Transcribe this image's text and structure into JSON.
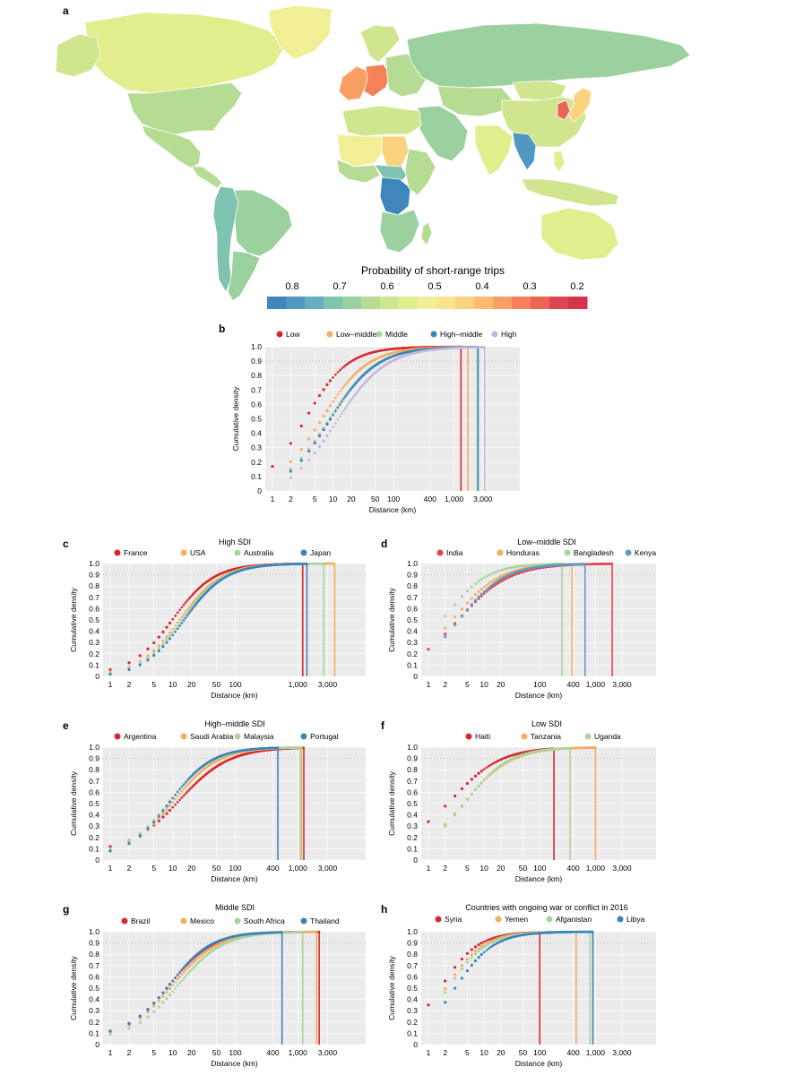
{
  "panel_labels": {
    "a": "a",
    "b": "b",
    "c": "c",
    "d": "d",
    "e": "e",
    "f": "f",
    "g": "g",
    "h": "h"
  },
  "map": {
    "colorbar_title": "Probability of short-range trips",
    "colorbar_ticks": [
      "0.8",
      "0.7",
      "0.6",
      "0.5",
      "0.4",
      "0.3",
      "0.2"
    ],
    "colorbar_tick_values": [
      0.8,
      0.7,
      0.6,
      0.5,
      0.4,
      0.3,
      0.2
    ],
    "colorbar_colors": [
      "#3f86bc",
      "#4f98c2",
      "#66adbf",
      "#80c2b0",
      "#9bd19e",
      "#b6dc93",
      "#cfe68e",
      "#e2ed8e",
      "#f0ef95",
      "#f8e48a",
      "#fbd27d",
      "#fcbb6f",
      "#fa9f63",
      "#f5815a",
      "#ec6454",
      "#e04651",
      "#d6344d"
    ],
    "regions": [
      {
        "name": "Canada",
        "value": 0.54
      },
      {
        "name": "Alaska",
        "value": 0.58
      },
      {
        "name": "Greenland",
        "value": 0.5
      },
      {
        "name": "USA",
        "value": 0.62
      },
      {
        "name": "Mexico",
        "value": 0.62
      },
      {
        "name": "Central America",
        "value": 0.6
      },
      {
        "name": "Brazil",
        "value": 0.66
      },
      {
        "name": "South America West",
        "value": 0.7
      },
      {
        "name": "Argentina",
        "value": 0.64
      },
      {
        "name": "Europe West",
        "value": 0.36
      },
      {
        "name": "Europe Central",
        "value": 0.3
      },
      {
        "name": "Scandinavia",
        "value": 0.58
      },
      {
        "name": "Eastern Europe",
        "value": 0.62
      },
      {
        "name": "Russia",
        "value": 0.64
      },
      {
        "name": "Central Asia",
        "value": 0.62
      },
      {
        "name": "Middle East",
        "value": 0.66
      },
      {
        "name": "India",
        "value": 0.54
      },
      {
        "name": "China",
        "value": 0.56
      },
      {
        "name": "Mongolia",
        "value": 0.57
      },
      {
        "name": "Japan",
        "value": 0.42
      },
      {
        "name": "Korea",
        "value": 0.28
      },
      {
        "name": "SE Asia",
        "value": 0.78
      },
      {
        "name": "Indonesia",
        "value": 0.56
      },
      {
        "name": "Philippines",
        "value": 0.52
      },
      {
        "name": "Australia",
        "value": 0.52
      },
      {
        "name": "North Africa",
        "value": 0.58
      },
      {
        "name": "Sahel",
        "value": 0.5
      },
      {
        "name": "Chad",
        "value": 0.42
      },
      {
        "name": "West Africa",
        "value": 0.6
      },
      {
        "name": "Central Africa",
        "value": 0.68
      },
      {
        "name": "DR Congo",
        "value": 0.82
      },
      {
        "name": "East Africa",
        "value": 0.62
      },
      {
        "name": "Southern Africa",
        "value": 0.66
      },
      {
        "name": "Madagascar",
        "value": 0.6
      }
    ]
  },
  "chart_data": [
    {
      "id": "b",
      "type": "scatter",
      "title": "",
      "xlabel": "Distance (km)",
      "ylabel": "Cumulative density",
      "xscale": "log",
      "xlim": [
        1,
        3000
      ],
      "ylim": [
        0,
        1
      ],
      "xticks": [
        1,
        2,
        5,
        10,
        20,
        50,
        100,
        400,
        1000,
        3000
      ],
      "xtick_labels": [
        "1",
        "2",
        "5",
        "10",
        "20",
        "50",
        "100",
        "400",
        "1,000",
        "3,000"
      ],
      "yticks": [
        0,
        0.1,
        0.2,
        0.3,
        0.4,
        0.5,
        0.6,
        0.7,
        0.8,
        0.9,
        1.0
      ],
      "ytick_labels": [
        "0",
        "0.1",
        "0.2",
        "0.3",
        "0.4",
        "0.5",
        "0.6",
        "0.7",
        "0.8",
        "0.9",
        "1.0"
      ],
      "legend_position": "top",
      "series": [
        {
          "name": "Low",
          "color": "#d7282f",
          "start": 0.17,
          "x50": 3.5,
          "k": 1.25,
          "max": 1300,
          "dmax": 1300
        },
        {
          "name": "Low–middle",
          "color": "#f6ad5f",
          "start": 0.1,
          "x50": 6.5,
          "k": 1.15,
          "max": 1700,
          "dmax": 1700
        },
        {
          "name": "Middle",
          "color": "#a8d5a0",
          "start": 0.07,
          "x50": 8.5,
          "k": 1.1,
          "max": 2400,
          "dmax": 2400
        },
        {
          "name": "High–middle",
          "color": "#3a84bd",
          "start": 0.05,
          "x50": 8.5,
          "k": 1.1,
          "max": 2500,
          "dmax": 2500
        },
        {
          "name": "High",
          "color": "#c3b8dc",
          "start": 0.02,
          "x50": 11,
          "k": 1.05,
          "max": 3200,
          "dmax": 3200
        }
      ]
    },
    {
      "id": "c",
      "type": "scatter",
      "title": "High SDI",
      "xlabel": "Distance (km)",
      "ylabel": "Cumulative density",
      "xscale": "log",
      "xlim": [
        1,
        3000
      ],
      "ylim": [
        0,
        1
      ],
      "xticks": [
        1,
        2,
        5,
        10,
        20,
        50,
        100,
        1000,
        3000
      ],
      "xtick_labels": [
        "1",
        "2",
        "5",
        "10",
        "20",
        "50",
        "100",
        "1,000",
        "3,000"
      ],
      "yticks": [
        0,
        0.1,
        0.2,
        0.3,
        0.4,
        0.5,
        0.6,
        0.7,
        0.8,
        0.9,
        1.0
      ],
      "ytick_labels": [
        "0",
        "0.1",
        "0.2",
        "0.3",
        "0.4",
        "0.5",
        "0.6",
        "0.7",
        "0.8",
        "0.9",
        "1.0"
      ],
      "legend_position": "top",
      "series": [
        {
          "name": "France",
          "color": "#d7282f",
          "start": 0.06,
          "x50": 10,
          "k": 1.3,
          "max": 1200,
          "dmax": 1200
        },
        {
          "name": "USA",
          "color": "#f6ad5f",
          "start": 0.04,
          "x50": 13,
          "k": 1.3,
          "max": 3900,
          "dmax": 3900
        },
        {
          "name": "Australia",
          "color": "#a8d5a0",
          "start": 0.03,
          "x50": 14,
          "k": 1.3,
          "max": 2600,
          "dmax": 2600
        },
        {
          "name": "Japan",
          "color": "#3a84bd",
          "start": 0.02,
          "x50": 15,
          "k": 1.3,
          "max": 1400,
          "dmax": 1400
        }
      ]
    },
    {
      "id": "d",
      "type": "scatter",
      "title": "Low–middle SDI",
      "xlabel": "Distance (km)",
      "ylabel": "Cumulative density",
      "xscale": "log",
      "xlim": [
        1,
        3000
      ],
      "ylim": [
        0,
        1
      ],
      "xticks": [
        1,
        2,
        5,
        10,
        20,
        100,
        400,
        1000,
        3000
      ],
      "xtick_labels": [
        "1",
        "2",
        "5",
        "10",
        "20",
        "100",
        "400",
        "1,000",
        "3,000"
      ],
      "yticks": [
        0,
        0.1,
        0.2,
        0.3,
        0.4,
        0.5,
        0.6,
        0.7,
        0.8,
        0.9,
        1.0
      ],
      "ytick_labels": [
        "0",
        "0.1",
        "0.2",
        "0.3",
        "0.4",
        "0.5",
        "0.6",
        "0.7",
        "0.8",
        "0.9",
        "1.0"
      ],
      "legend_position": "top",
      "series": [
        {
          "name": "India",
          "color": "#e04651",
          "start": 0.24,
          "x50": 3.5,
          "k": 0.95,
          "max": 2000,
          "dmax": 2000
        },
        {
          "name": "Honduras",
          "color": "#f6ad5f",
          "start": 0.28,
          "x50": 3.0,
          "k": 1.05,
          "max": 380,
          "dmax": 380
        },
        {
          "name": "Bangladesh",
          "color": "#a8d5a0",
          "start": 0.37,
          "x50": 2.3,
          "k": 1.2,
          "max": 250,
          "dmax": 250
        },
        {
          "name": "Kenya",
          "color": "#5b9cc9",
          "start": 0.2,
          "x50": 3.4,
          "k": 1.05,
          "max": 650,
          "dmax": 650
        }
      ]
    },
    {
      "id": "e",
      "type": "scatter",
      "title": "High–middle SDI",
      "xlabel": "Distance (km)",
      "ylabel": "Cumulative density",
      "xscale": "log",
      "xlim": [
        1,
        3000
      ],
      "ylim": [
        0,
        1
      ],
      "xticks": [
        1,
        2,
        5,
        10,
        20,
        50,
        100,
        400,
        1000,
        3000
      ],
      "xtick_labels": [
        "1",
        "2",
        "5",
        "10",
        "20",
        "50",
        "100",
        "400",
        "1,000",
        "3,000"
      ],
      "yticks": [
        0,
        0.1,
        0.2,
        0.3,
        0.4,
        0.5,
        0.6,
        0.7,
        0.8,
        0.9,
        1.0
      ],
      "ytick_labels": [
        "0",
        "0.1",
        "0.2",
        "0.3",
        "0.4",
        "0.5",
        "0.6",
        "0.7",
        "0.8",
        "0.9",
        "1.0"
      ],
      "legend_position": "top",
      "series": [
        {
          "name": "Argentina",
          "color": "#d7282f",
          "start": 0.12,
          "x50": 13,
          "k": 1.1,
          "max": 1250,
          "dmax": 1250
        },
        {
          "name": "Saudi Arabia",
          "color": "#f6ad5f",
          "start": 0.08,
          "x50": 10,
          "k": 1.2,
          "max": 1150,
          "dmax": 1150
        },
        {
          "name": "Malaysia",
          "color": "#a8d5a0",
          "start": 0.1,
          "x50": 9,
          "k": 1.25,
          "max": 1100,
          "dmax": 1100
        },
        {
          "name": "Portugal",
          "color": "#3a84bd",
          "start": 0.08,
          "x50": 9,
          "k": 1.3,
          "max": 480,
          "dmax": 480
        }
      ]
    },
    {
      "id": "f",
      "type": "scatter",
      "title": "Low SDI",
      "xlabel": "Distance (km)",
      "ylabel": "Cumulative density",
      "xscale": "log",
      "xlim": [
        1,
        3000
      ],
      "ylim": [
        0,
        1
      ],
      "xticks": [
        1,
        2,
        5,
        10,
        20,
        50,
        100,
        400,
        1000,
        3000
      ],
      "xtick_labels": [
        "1",
        "2",
        "5",
        "10",
        "20",
        "50",
        "100",
        "400",
        "1,000",
        "3,000"
      ],
      "yticks": [
        0,
        0.1,
        0.2,
        0.3,
        0.4,
        0.5,
        0.6,
        0.7,
        0.8,
        0.9,
        1.0
      ],
      "ytick_labels": [
        "0",
        "0.1",
        "0.2",
        "0.3",
        "0.4",
        "0.5",
        "0.6",
        "0.7",
        "0.8",
        "0.9",
        "1.0"
      ],
      "legend_position": "top",
      "series": [
        {
          "name": "Haiti",
          "color": "#d7282f",
          "start": 0.34,
          "x50": 2.8,
          "k": 1.0,
          "max": 180,
          "dmax": 180
        },
        {
          "name": "Tanzania",
          "color": "#f6ad5f",
          "start": 0.19,
          "x50": 4.5,
          "k": 1.05,
          "max": 1000,
          "dmax": 1000
        },
        {
          "name": "Uganda",
          "color": "#a8d5a0",
          "start": 0.17,
          "x50": 4.5,
          "k": 1.1,
          "max": 350,
          "dmax": 350
        }
      ]
    },
    {
      "id": "g",
      "type": "scatter",
      "title": "Middle SDI",
      "xlabel": "Distance (km)",
      "ylabel": "Cumulative density",
      "xscale": "log",
      "xlim": [
        1,
        3000
      ],
      "ylim": [
        0,
        1
      ],
      "xticks": [
        1,
        2,
        5,
        10,
        20,
        50,
        100,
        400,
        1000,
        3000
      ],
      "xtick_labels": [
        "1",
        "2",
        "5",
        "10",
        "20",
        "50",
        "100",
        "400",
        "1,000",
        "3,000"
      ],
      "yticks": [
        0,
        0.1,
        0.2,
        0.3,
        0.4,
        0.5,
        0.6,
        0.7,
        0.8,
        0.9,
        1.0
      ],
      "ytick_labels": [
        "0",
        "0.1",
        "0.2",
        "0.3",
        "0.4",
        "0.5",
        "0.6",
        "0.7",
        "0.8",
        "0.9",
        "1.0"
      ],
      "legend_position": "top",
      "series": [
        {
          "name": "Brazil",
          "color": "#d7282f",
          "start": 0.12,
          "x50": 9,
          "k": 1.25,
          "max": 2200,
          "dmax": 2200
        },
        {
          "name": "Mexico",
          "color": "#f6ad5f",
          "start": 0.11,
          "x50": 10,
          "k": 1.2,
          "max": 2000,
          "dmax": 2000
        },
        {
          "name": "South Africa",
          "color": "#a8d5a0",
          "start": 0.09,
          "x50": 12,
          "k": 1.2,
          "max": 1200,
          "dmax": 1200
        },
        {
          "name": "Thailand",
          "color": "#3a84bd",
          "start": 0.12,
          "x50": 9,
          "k": 1.3,
          "max": 560,
          "dmax": 560
        }
      ]
    },
    {
      "id": "h",
      "type": "scatter",
      "title": "Countries with ongoing war or conflict in 2016",
      "xlabel": "Distance (km)",
      "ylabel": "Cumulative density",
      "xscale": "log",
      "xlim": [
        1,
        3000
      ],
      "ylim": [
        0,
        1
      ],
      "xticks": [
        1,
        2,
        5,
        10,
        20,
        50,
        100,
        400,
        1000,
        3000
      ],
      "xtick_labels": [
        "1",
        "2",
        "5",
        "10",
        "20",
        "50",
        "100",
        "400",
        "1,000",
        "3,000"
      ],
      "yticks": [
        0,
        0.1,
        0.2,
        0.3,
        0.4,
        0.5,
        0.6,
        0.7,
        0.8,
        0.9,
        1.0
      ],
      "ytick_labels": [
        "0",
        "0.1",
        "0.2",
        "0.3",
        "0.4",
        "0.5",
        "0.6",
        "0.7",
        "0.8",
        "0.9",
        "1.0"
      ],
      "legend_position": "top",
      "series": [
        {
          "name": "Syria",
          "color": "#d7282f",
          "start": 0.35,
          "x50": 1.7,
          "k": 1.3,
          "max": 100,
          "dmax": 100
        },
        {
          "name": "Yemen",
          "color": "#f6ad5f",
          "start": 0.3,
          "x50": 2.2,
          "k": 1.3,
          "max": 450,
          "dmax": 450
        },
        {
          "name": "Afganistan",
          "color": "#a8d5a0",
          "start": 0.27,
          "x50": 2.3,
          "k": 1.25,
          "max": 800,
          "dmax": 800
        },
        {
          "name": "Libya",
          "color": "#3a84bd",
          "start": 0.2,
          "x50": 3.0,
          "k": 1.25,
          "max": 900,
          "dmax": 900
        }
      ]
    }
  ]
}
